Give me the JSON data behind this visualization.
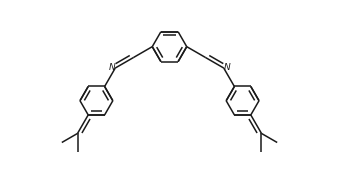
{
  "bg_color": "#ffffff",
  "line_color": "#1a1a1a",
  "line_width": 1.1,
  "fig_width": 3.39,
  "fig_height": 1.82,
  "dpi": 100
}
